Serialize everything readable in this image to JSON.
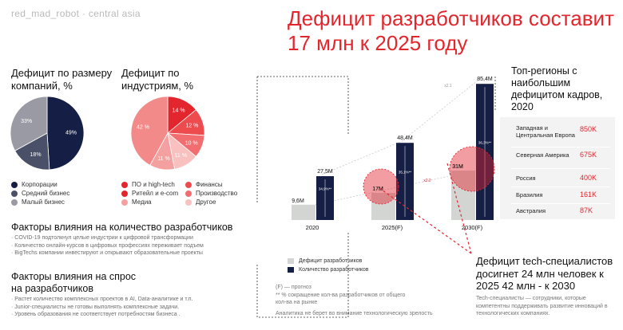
{
  "brand": {
    "name": "red_mad_robot",
    "suffix": "· central asia"
  },
  "title": "Дефицит разработчиков составит 17 млн к 2025 году",
  "colors": {
    "red": "#e3262e",
    "navy": "#151e45",
    "slate": "#4a5068",
    "grey": "#9a9aa4",
    "light_grey": "#d3d5d3"
  },
  "pie_company": {
    "title": "Дефицит по размеру компаний, %",
    "legend": [
      "Корпорации",
      "Средний бизнес",
      "Малый бизнес"
    ]
  },
  "pie_industry": {
    "title": "Дефицит по индустриям, %",
    "legend": [
      "ПО и high-tech",
      "Финансы",
      "Ритейл и e-com",
      "Производство",
      "Медиа",
      "Другое"
    ]
  },
  "factors_count": {
    "title": "Факторы влияния на количество разработчиков",
    "items": [
      "· COVID-19 подтолкнул целые индустрии к цифровой трансформации",
      "· Количество онлайн-курсов в цифровых профессиях переживает подъем",
      "· BigTechs компании инвестируют и открывают образовательные проекты"
    ]
  },
  "factors_demand": {
    "title": "Факторы влияния на спрос на разработчиков",
    "items": [
      "· Растет количество комплексных проектов в AI, Data-аналитике и т.п.",
      "· Junior-специалисты не готовы выполнять комплексные задачи.",
      "· Уровень образования не соответствует потребностям бизнеса ."
    ]
  },
  "chart_data": [
    {
      "type": "pie",
      "title": "Дефицит по размеру компаний, %",
      "labels": [
        "Корпорации",
        "Средний бизнес",
        "Малый бизнес"
      ],
      "values": [
        49,
        18,
        33
      ],
      "value_labels": [
        "49%",
        "18%",
        "33%"
      ],
      "colors": [
        "#151e45",
        "#4a5068",
        "#9a9aa4"
      ]
    },
    {
      "type": "pie",
      "title": "Дефицит по индустриям, %",
      "labels": [
        "ПО и high-tech",
        "Финансы",
        "Производство",
        "Другое",
        "Медиа",
        "Ритейл и e-com"
      ],
      "values": [
        14,
        12,
        10,
        11,
        11,
        42
      ],
      "value_labels": [
        "14 %",
        "12 %",
        "10 %",
        "11 %",
        "11 %",
        "42 %"
      ],
      "colors": [
        "#e3262e",
        "#ee4b4f",
        "#f26d6f",
        "#f9c0c0",
        "#f5a0a0",
        "#f38a8a"
      ]
    },
    {
      "type": "bar",
      "categories": [
        "2020",
        "2025(F)",
        "2030(F)"
      ],
      "series": [
        {
          "name": "Дефицит разработчиков",
          "values": [
            9.6,
            17,
            31
          ],
          "labels": [
            "9,6M",
            "17M",
            "31M"
          ]
        },
        {
          "name": "Количество разработчиков",
          "values": [
            27.5,
            48.4,
            85.4
          ],
          "labels": [
            "27,5M",
            "48,4M",
            "85,4M"
          ]
        }
      ],
      "ratios": [
        "34,9%**",
        "35,1%**",
        "36,3%**"
      ],
      "growth": [
        "x2.2",
        "x2.1"
      ],
      "legend_position": "bottom-left"
    }
  ],
  "bar_legend": [
    "Дефицит разработчиков",
    "Количество разработчиков"
  ],
  "notes": [
    "(F) — прогноз",
    "** % сокращение кол-ва разработчиков от общего кол-ва на рынке",
    "Аналитика не берет во внимание технологическую зрелость"
  ],
  "regions": {
    "title": "Топ-регионы с наибольшим дефицитом кадров, 2020",
    "rows": [
      {
        "name": "Западная и Центральная Европа",
        "value": "850K"
      },
      {
        "name": "Северная Америка",
        "value": "675K"
      },
      {
        "name": "Россия",
        "value": "400K"
      },
      {
        "name": "Бразилия",
        "value": "161K"
      },
      {
        "name": "Австралия",
        "value": "87K"
      }
    ]
  },
  "deficit": {
    "title": "Дефицит tech-специалистов досигнет 24 млн человек к 2025 42 млн - к 2030",
    "note": "Tech-специалисты — сотрудники, которые компетентны поддерживать развитие инноваций в технологических компаниях."
  }
}
